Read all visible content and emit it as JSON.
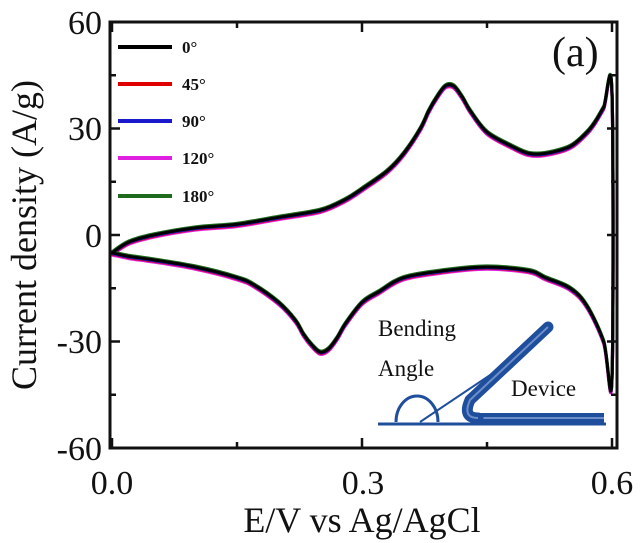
{
  "chart_data": {
    "type": "line",
    "panel_label": "(a)",
    "xlabel": "E/V vs Ag/AgCl",
    "ylabel": "Current density (A/g)",
    "xlim": [
      0,
      0.6
    ],
    "ylim": [
      -60,
      60
    ],
    "x_ticks": [
      "0.0",
      "0.3",
      "0.6"
    ],
    "y_ticks": [
      "60",
      "30",
      "0",
      "-30",
      "-60"
    ],
    "legend_position": "top-left",
    "series": [
      {
        "name": "0°",
        "color": "#000000"
      },
      {
        "name": "45°",
        "color": "#e00000"
      },
      {
        "name": "90°",
        "color": "#1a1acc"
      },
      {
        "name": "120°",
        "color": "#e020e0"
      },
      {
        "name": "180°",
        "color": "#1e6b1e"
      }
    ],
    "anodic_scan": {
      "x": [
        0.0,
        0.02,
        0.05,
        0.1,
        0.15,
        0.2,
        0.25,
        0.28,
        0.3,
        0.33,
        0.35,
        0.37,
        0.38,
        0.39,
        0.4,
        0.41,
        0.42,
        0.43,
        0.45,
        0.48,
        0.5,
        0.52,
        0.55,
        0.57,
        0.58,
        0.59,
        0.6
      ],
      "y": [
        -5,
        -2,
        0,
        2,
        3,
        5,
        7,
        10,
        13,
        18,
        23,
        30,
        35,
        39,
        42,
        42,
        39,
        35,
        29,
        25,
        23,
        23,
        25,
        29,
        32,
        36,
        40
      ]
    },
    "cathodic_scan": {
      "x": [
        0.6,
        0.59,
        0.57,
        0.55,
        0.52,
        0.5,
        0.45,
        0.4,
        0.35,
        0.32,
        0.3,
        0.28,
        0.27,
        0.26,
        0.25,
        0.24,
        0.23,
        0.22,
        0.2,
        0.17,
        0.15,
        0.1,
        0.05,
        0.02,
        0.0
      ],
      "y": [
        40,
        30,
        20,
        15,
        12,
        10,
        9,
        10,
        12,
        16,
        19,
        25,
        29,
        32,
        33,
        31,
        28,
        24,
        19,
        14,
        12,
        9,
        7,
        6,
        5
      ]
    },
    "cathodic_sign": -1
  },
  "inset": {
    "bending_label": "Bending",
    "angle_label": "Angle",
    "device_label": "Device",
    "color": "#1f4f9c"
  }
}
